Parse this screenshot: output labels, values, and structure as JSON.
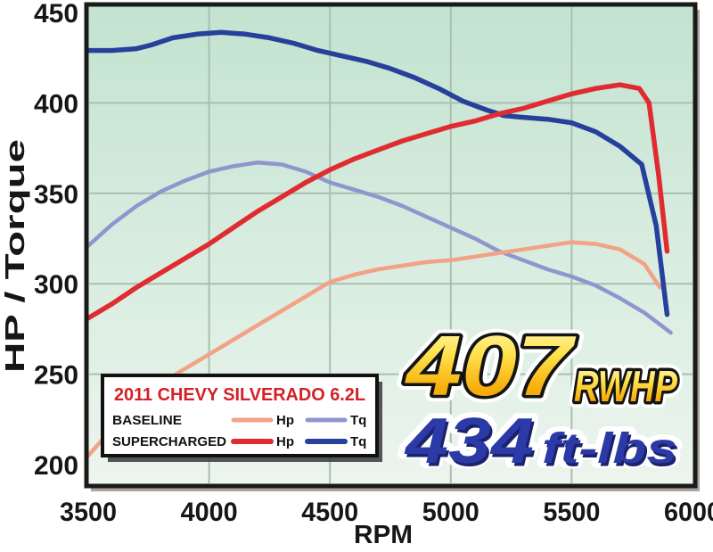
{
  "chart_data": {
    "type": "line",
    "title": "",
    "xlabel": "RPM",
    "ylabel": "HP / Torque",
    "xlim": [
      3500,
      6000
    ],
    "ylim": [
      200,
      450
    ],
    "xticks": [
      3500,
      4000,
      4500,
      5000,
      5500,
      6000
    ],
    "yticks": [
      200,
      250,
      300,
      350,
      400,
      450
    ],
    "grid": true,
    "legend": {
      "position": "bottom-left",
      "title": "2011 CHEVY SILVERADO 6.2L",
      "rows": [
        {
          "label": "BASELINE",
          "entries": [
            {
              "name": "Hp",
              "color": "#f2a285"
            },
            {
              "name": "Tq",
              "color": "#9096cd"
            }
          ]
        },
        {
          "label": "SUPERCHARGED",
          "entries": [
            {
              "name": "Hp",
              "color": "#e02c31"
            },
            {
              "name": "Tq",
              "color": "#27409c"
            }
          ]
        }
      ]
    },
    "series": [
      {
        "name": "Baseline Tq",
        "color": "#9096cd",
        "width": 4.5,
        "points": [
          [
            3500,
            321
          ],
          [
            3600,
            333
          ],
          [
            3700,
            343
          ],
          [
            3800,
            351
          ],
          [
            3900,
            357
          ],
          [
            4000,
            362
          ],
          [
            4100,
            365
          ],
          [
            4200,
            367
          ],
          [
            4300,
            366
          ],
          [
            4400,
            362
          ],
          [
            4500,
            356
          ],
          [
            4600,
            352
          ],
          [
            4700,
            348
          ],
          [
            4800,
            343
          ],
          [
            4900,
            337
          ],
          [
            5000,
            331
          ],
          [
            5100,
            325
          ],
          [
            5200,
            318
          ],
          [
            5300,
            313
          ],
          [
            5400,
            308
          ],
          [
            5500,
            304
          ],
          [
            5600,
            299
          ],
          [
            5700,
            292
          ],
          [
            5800,
            284
          ],
          [
            5910,
            273
          ]
        ]
      },
      {
        "name": "Baseline Hp",
        "color": "#f2a285",
        "width": 4.5,
        "points": [
          [
            3500,
            205
          ],
          [
            3600,
            220
          ],
          [
            3700,
            233
          ],
          [
            3800,
            245
          ],
          [
            3900,
            253
          ],
          [
            4000,
            261
          ],
          [
            4100,
            269
          ],
          [
            4200,
            277
          ],
          [
            4300,
            285
          ],
          [
            4400,
            293
          ],
          [
            4500,
            301
          ],
          [
            4600,
            305
          ],
          [
            4700,
            308
          ],
          [
            4800,
            310
          ],
          [
            4900,
            312
          ],
          [
            5000,
            313
          ],
          [
            5100,
            315
          ],
          [
            5200,
            317
          ],
          [
            5300,
            319
          ],
          [
            5400,
            321
          ],
          [
            5500,
            323
          ],
          [
            5600,
            322
          ],
          [
            5700,
            319
          ],
          [
            5800,
            311
          ],
          [
            5865,
            298
          ]
        ]
      },
      {
        "name": "Supercharged Tq",
        "color": "#27409c",
        "width": 5.5,
        "points": [
          [
            3500,
            429
          ],
          [
            3600,
            429
          ],
          [
            3700,
            430
          ],
          [
            3760,
            432
          ],
          [
            3850,
            436
          ],
          [
            3950,
            438
          ],
          [
            4050,
            439
          ],
          [
            4150,
            438
          ],
          [
            4250,
            436
          ],
          [
            4350,
            433
          ],
          [
            4450,
            429
          ],
          [
            4550,
            426
          ],
          [
            4650,
            423
          ],
          [
            4750,
            419
          ],
          [
            4850,
            414
          ],
          [
            4950,
            408
          ],
          [
            5050,
            401
          ],
          [
            5150,
            396
          ],
          [
            5220,
            393
          ],
          [
            5300,
            392
          ],
          [
            5400,
            391
          ],
          [
            5500,
            389
          ],
          [
            5600,
            384
          ],
          [
            5700,
            376
          ],
          [
            5790,
            366
          ],
          [
            5850,
            332
          ],
          [
            5895,
            283
          ]
        ]
      },
      {
        "name": "Supercharged Hp",
        "color": "#e02c31",
        "width": 5.5,
        "points": [
          [
            3500,
            281
          ],
          [
            3600,
            289
          ],
          [
            3700,
            298
          ],
          [
            3800,
            306
          ],
          [
            3900,
            314
          ],
          [
            4000,
            322
          ],
          [
            4100,
            331
          ],
          [
            4200,
            340
          ],
          [
            4300,
            348
          ],
          [
            4400,
            356
          ],
          [
            4500,
            363
          ],
          [
            4600,
            369
          ],
          [
            4700,
            374
          ],
          [
            4800,
            379
          ],
          [
            4900,
            383
          ],
          [
            5000,
            387
          ],
          [
            5100,
            390
          ],
          [
            5200,
            394
          ],
          [
            5300,
            397
          ],
          [
            5400,
            401
          ],
          [
            5500,
            405
          ],
          [
            5600,
            408
          ],
          [
            5700,
            410
          ],
          [
            5780,
            408
          ],
          [
            5820,
            400
          ],
          [
            5860,
            360
          ],
          [
            5895,
            318
          ]
        ]
      }
    ],
    "annotations": [
      {
        "value": "407",
        "unit": "RWHP",
        "style": "gold"
      },
      {
        "value": "434",
        "unit": "ft-lbs",
        "style": "blue"
      }
    ]
  },
  "colors": {
    "background": "#ffffff",
    "plot_bg_top": "#c3e3d0",
    "plot_bg_bottom": "#ecf5ee",
    "gridline": "#a9bfb2",
    "frame": "#1a1a1a",
    "frame_shadow": "#938d87",
    "axis_text": "#161616",
    "legend_title": "#d42027",
    "legend_text": "#111111",
    "legend_border": "#111111",
    "legend_shadow": "#3a3a3a",
    "gold_light": "#fffbc2",
    "gold_mid": "#ffe14a",
    "gold_deep": "#f6ad0a",
    "annotation_outline": "#141414",
    "annotation_blue": "#2c3aa8",
    "annotation_navy_shadow": "#19226b",
    "annotation_halo": "#ffffff"
  }
}
